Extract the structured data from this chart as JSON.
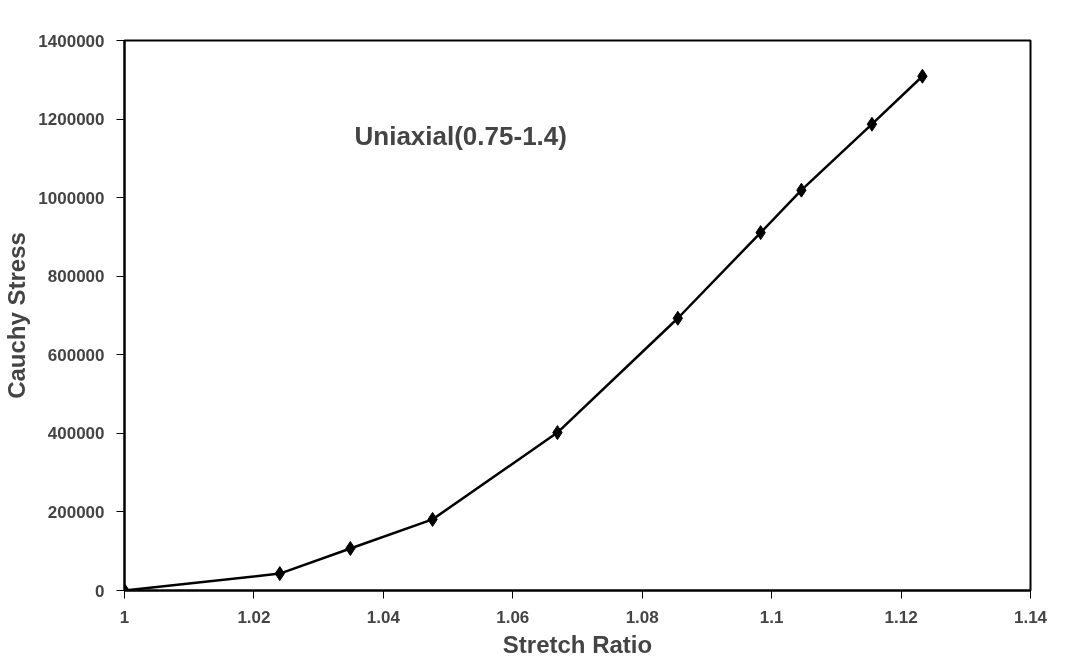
{
  "chart_data": {
    "type": "line",
    "xlabel": "Stretch Ratio",
    "ylabel": "Cauchy Stress",
    "annotations": [
      "Uniaxial(0.75-1.4)"
    ],
    "series": [
      {
        "color": "#000000",
        "x": [
          1,
          1.024,
          1.0349,
          1.0476,
          1.0669,
          1.0855,
          1.0983,
          1.1046,
          1.1155,
          1.1233
        ],
        "values": [
          0,
          43000,
          107000,
          181000,
          402000,
          693000,
          911000,
          1019000,
          1187000,
          1309000
        ]
      }
    ],
    "xlim": [
      1,
      1.14
    ],
    "xticks": [
      1,
      1.02,
      1.04,
      1.06,
      1.08,
      1.1,
      1.12,
      1.14
    ],
    "ylim": [
      0,
      1400000
    ],
    "yticks": [
      0,
      200000,
      400000,
      600000,
      800000,
      1000000,
      1200000,
      1400000
    ],
    "grid": false,
    "marker": "diamond",
    "line_style": "solid"
  }
}
